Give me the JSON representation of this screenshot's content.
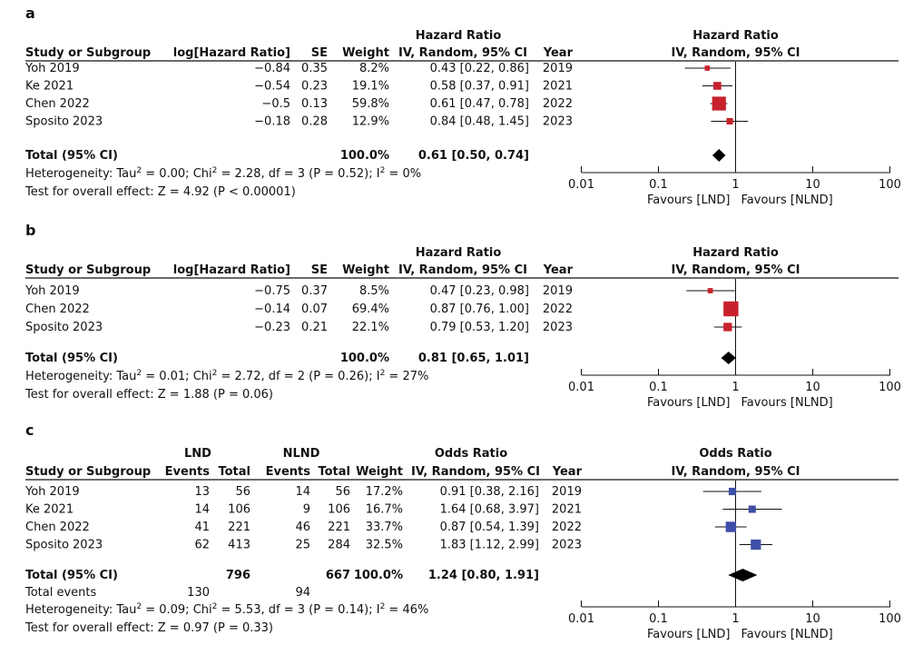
{
  "colors": {
    "hr_square": "#c8212b",
    "or_square": "#3f4fa8",
    "diamond": "#000000",
    "text": "#111111"
  },
  "chart_data": [
    {
      "panel": "a",
      "type": "forest",
      "measure": "hr",
      "header": {
        "effect_top": "Hazard Ratio",
        "study": "Study or Subgroup",
        "logvalue": "log[Hazard Ratio]",
        "se": "SE",
        "weight": "Weight",
        "effect": "IV, Random, 95% CI",
        "year": "Year",
        "plot_top": "Hazard Ratio",
        "plot_sub": "IV, Random, 95% CI"
      },
      "studies": [
        {
          "name": "Yoh 2019",
          "logvalue": "−0.84",
          "se": "0.35",
          "weight_label": "8.2%",
          "ci_label": "0.43 [0.22, 0.86]",
          "year": "2019",
          "est": 0.43,
          "lo": 0.22,
          "hi": 0.86,
          "weight": 8.2
        },
        {
          "name": "Ke 2021",
          "logvalue": "−0.54",
          "se": "0.23",
          "weight_label": "19.1%",
          "ci_label": "0.58 [0.37, 0.91]",
          "year": "2021",
          "est": 0.58,
          "lo": 0.37,
          "hi": 0.91,
          "weight": 19.1
        },
        {
          "name": "Chen 2022",
          "logvalue": "−0.5",
          "se": "0.13",
          "weight_label": "59.8%",
          "ci_label": "0.61 [0.47, 0.78]",
          "year": "2022",
          "est": 0.61,
          "lo": 0.47,
          "hi": 0.78,
          "weight": 59.8
        },
        {
          "name": "Sposito 2023",
          "logvalue": "−0.18",
          "se": "0.28",
          "weight_label": "12.9%",
          "ci_label": "0.84 [0.48, 1.45]",
          "year": "2023",
          "est": 0.84,
          "lo": 0.48,
          "hi": 1.45,
          "weight": 12.9
        }
      ],
      "total": {
        "label": "Total (95% CI)",
        "weight_label": "100.0%",
        "ci_label": "0.61 [0.50, 0.74]",
        "est": 0.61,
        "lo": 0.5,
        "hi": 0.74
      },
      "heterogeneity": {
        "prefix": "Heterogeneity: Tau",
        "sup1": "2",
        "mid1": " = 0.00; Chi",
        "sup2": "2",
        "mid2": " = 2.28, df = 3 (P = 0.52); I",
        "sup3": "2",
        "end": " = 0%"
      },
      "overall": "Test for overall effect: Z = 4.92 (P < 0.00001)",
      "axis": {
        "ticks": [
          0.01,
          0.1,
          1,
          10,
          100
        ],
        "tick_labels": [
          "0.01",
          "0.1",
          "1",
          "10",
          "100"
        ],
        "range": [
          0.01,
          100
        ],
        "scale": "log"
      },
      "favours_left": "Favours [LND]",
      "favours_right": "Favours [NLND]"
    },
    {
      "panel": "b",
      "type": "forest",
      "measure": "hr",
      "header": {
        "effect_top": "Hazard Ratio",
        "study": "Study or Subgroup",
        "logvalue": "log[Hazard Ratio]",
        "se": "SE",
        "weight": "Weight",
        "effect": "IV, Random, 95% CI",
        "year": "Year",
        "plot_top": "Hazard Ratio",
        "plot_sub": "IV, Random, 95% CI"
      },
      "studies": [
        {
          "name": "Yoh 2019",
          "logvalue": "−0.75",
          "se": "0.37",
          "weight_label": "8.5%",
          "ci_label": "0.47 [0.23, 0.98]",
          "year": "2019",
          "est": 0.47,
          "lo": 0.23,
          "hi": 0.98,
          "weight": 8.5
        },
        {
          "name": "Chen 2022",
          "logvalue": "−0.14",
          "se": "0.07",
          "weight_label": "69.4%",
          "ci_label": "0.87 [0.76, 1.00]",
          "year": "2022",
          "est": 0.87,
          "lo": 0.76,
          "hi": 1.0,
          "weight": 69.4
        },
        {
          "name": "Sposito 2023",
          "logvalue": "−0.23",
          "se": "0.21",
          "weight_label": "22.1%",
          "ci_label": "0.79 [0.53, 1.20]",
          "year": "2023",
          "est": 0.79,
          "lo": 0.53,
          "hi": 1.2,
          "weight": 22.1
        }
      ],
      "total": {
        "label": "Total (95% CI)",
        "weight_label": "100.0%",
        "ci_label": "0.81 [0.65, 1.01]",
        "est": 0.81,
        "lo": 0.65,
        "hi": 1.01
      },
      "heterogeneity": {
        "prefix": "Heterogeneity: Tau",
        "sup1": "2",
        "mid1": " = 0.01; Chi",
        "sup2": "2",
        "mid2": " = 2.72, df = 2 (P = 0.26); I",
        "sup3": "2",
        "end": " = 27%"
      },
      "overall": "Test for overall effect: Z = 1.88 (P = 0.06)",
      "axis": {
        "ticks": [
          0.01,
          0.1,
          1,
          10,
          100
        ],
        "tick_labels": [
          "0.01",
          "0.1",
          "1",
          "10",
          "100"
        ],
        "range": [
          0.01,
          100
        ],
        "scale": "log"
      },
      "favours_left": "Favours [LND]",
      "favours_right": "Favours [NLND]"
    },
    {
      "panel": "c",
      "type": "forest",
      "measure": "or",
      "header": {
        "group1": "LND",
        "group2": "NLND",
        "effect_top": "Odds Ratio",
        "study": "Study or Subgroup",
        "events": "Events",
        "total": "Total",
        "weight": "Weight",
        "effect": "IV, Random, 95% CI",
        "year": "Year",
        "plot_top": "Odds Ratio",
        "plot_sub": "IV, Random, 95% CI"
      },
      "studies": [
        {
          "name": "Yoh 2019",
          "e1": "13",
          "t1": "56",
          "e2": "14",
          "t2": "56",
          "weight_label": "17.2%",
          "ci_label": "0.91 [0.38, 2.16]",
          "year": "2019",
          "est": 0.91,
          "lo": 0.38,
          "hi": 2.16,
          "weight": 17.2
        },
        {
          "name": "Ke 2021",
          "e1": "14",
          "t1": "106",
          "e2": "9",
          "t2": "106",
          "weight_label": "16.7%",
          "ci_label": "1.64 [0.68, 3.97]",
          "year": "2021",
          "est": 1.64,
          "lo": 0.68,
          "hi": 3.97,
          "weight": 16.7
        },
        {
          "name": "Chen 2022",
          "e1": "41",
          "t1": "221",
          "e2": "46",
          "t2": "221",
          "weight_label": "33.7%",
          "ci_label": "0.87 [0.54, 1.39]",
          "year": "2022",
          "est": 0.87,
          "lo": 0.54,
          "hi": 1.39,
          "weight": 33.7
        },
        {
          "name": "Sposito 2023",
          "e1": "62",
          "t1": "413",
          "e2": "25",
          "t2": "284",
          "weight_label": "32.5%",
          "ci_label": "1.83 [1.12, 2.99]",
          "year": "2023",
          "est": 1.83,
          "lo": 1.12,
          "hi": 2.99,
          "weight": 32.5
        }
      ],
      "total": {
        "label": "Total (95% CI)",
        "t1": "796",
        "t2": "667",
        "weight_label": "100.0%",
        "ci_label": "1.24 [0.80, 1.91]",
        "est": 1.24,
        "lo": 0.8,
        "hi": 1.91
      },
      "total_events": {
        "label": "Total events",
        "e1": "130",
        "e2": "94"
      },
      "heterogeneity": {
        "prefix": "Heterogeneity: Tau",
        "sup1": "2",
        "mid1": " = 0.09; Chi",
        "sup2": "2",
        "mid2": " = 5.53, df = 3 (P = 0.14); I",
        "sup3": "2",
        "end": " = 46%"
      },
      "overall": "Test for overall effect: Z = 0.97 (P = 0.33)",
      "axis": {
        "ticks": [
          0.01,
          0.1,
          1,
          10,
          100
        ],
        "tick_labels": [
          "0.01",
          "0.1",
          "1",
          "10",
          "100"
        ],
        "range": [
          0.01,
          100
        ],
        "scale": "log"
      },
      "favours_left": "Favours [LND]",
      "favours_right": "Favours [NLND]"
    }
  ]
}
